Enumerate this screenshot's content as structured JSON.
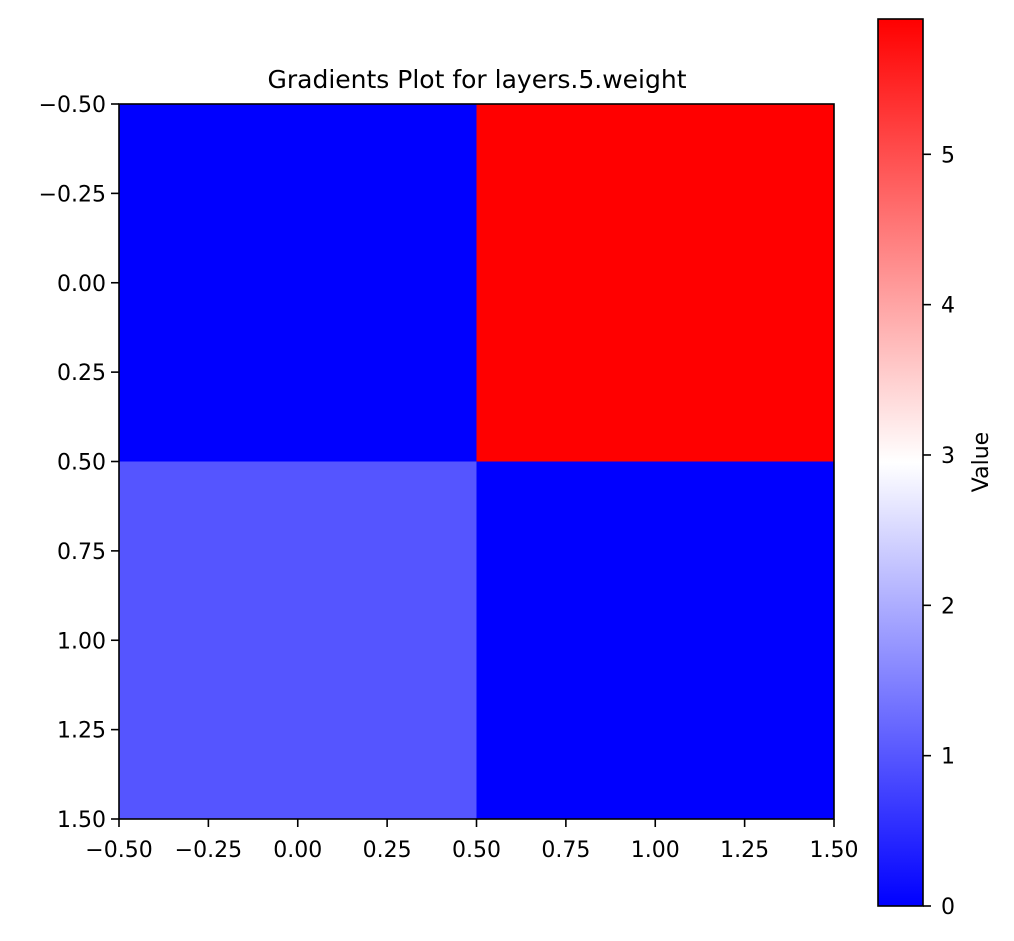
{
  "chart_data": {
    "type": "heatmap",
    "title": "Gradients Plot for layers.5.weight",
    "xlabel": "",
    "ylabel": "",
    "xlim": [
      -0.5,
      1.5
    ],
    "ylim": [
      1.5,
      -0.5
    ],
    "x_ticks": [
      "−0.50",
      "−0.25",
      "0.00",
      "0.25",
      "0.50",
      "0.75",
      "1.00",
      "1.25",
      "1.50"
    ],
    "y_ticks": [
      "−0.50",
      "−0.25",
      "0.00",
      "0.25",
      "0.50",
      "0.75",
      "1.00",
      "1.25",
      "1.50"
    ],
    "matrix": [
      [
        0.0,
        5.9
      ],
      [
        0.98,
        0.0
      ]
    ],
    "colorbar": {
      "label": "Value",
      "range": [
        0,
        5.9
      ],
      "ticks": [
        "0",
        "1",
        "2",
        "3",
        "4",
        "5"
      ],
      "colormap": [
        "#0000ff",
        "#ffffff",
        "#ff0000"
      ]
    },
    "grid": false,
    "legend": "none"
  }
}
